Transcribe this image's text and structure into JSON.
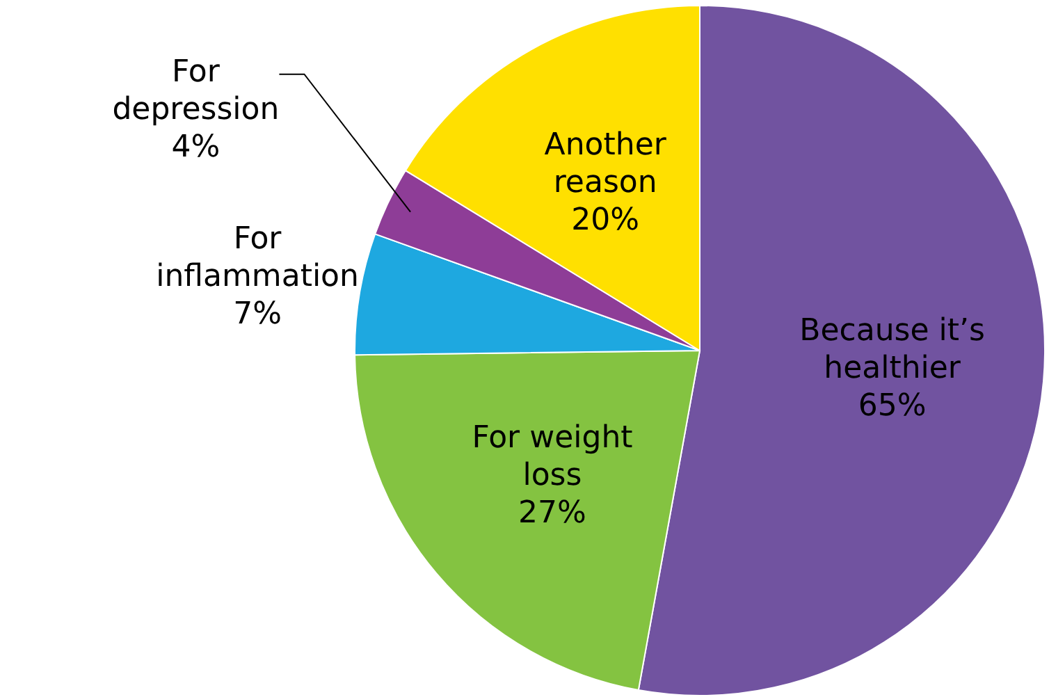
{
  "chart_data": {
    "type": "pie",
    "categories": [
      "Because it’s healthier",
      "For weight loss",
      "For inflammation",
      "For depression",
      "Another reason"
    ],
    "values": [
      65,
      27,
      7,
      4,
      20
    ],
    "value_labels": [
      "65%",
      "27%",
      "7%",
      "4%",
      "20%"
    ],
    "colors": [
      "#7153a0",
      "#84c341",
      "#1ea8e0",
      "#8e3d97",
      "#ffe000"
    ]
  }
}
